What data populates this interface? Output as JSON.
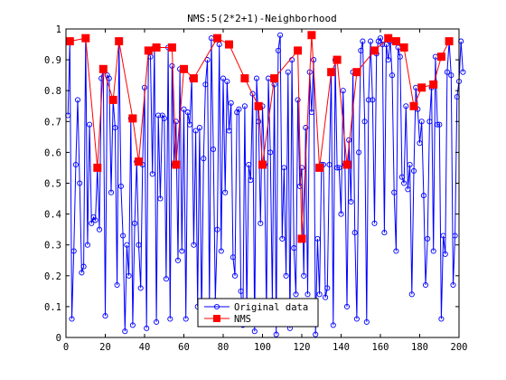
{
  "chart_data": {
    "type": "line",
    "title": "NMS:5(2*2+1)-Neighborhood",
    "xlabel": "",
    "ylabel": "",
    "xlim": [
      0,
      200
    ],
    "ylim": [
      0,
      1
    ],
    "xticks": [
      0,
      20,
      40,
      60,
      80,
      100,
      120,
      140,
      160,
      180,
      200
    ],
    "yticks": [
      0,
      0.1,
      0.2,
      0.3,
      0.4,
      0.5,
      0.6,
      0.7,
      0.8,
      0.9,
      1
    ],
    "xtick_labels": [
      "0",
      "20",
      "40",
      "60",
      "80",
      "100",
      "120",
      "140",
      "160",
      "180",
      "200"
    ],
    "ytick_labels": [
      "0",
      "0.1",
      "0.2",
      "0.3",
      "0.4",
      "0.5",
      "0.6",
      "0.7",
      "0.8",
      "0.9",
      "1"
    ],
    "grid": false,
    "legend": "bottom-center",
    "series": [
      {
        "name": "Original data",
        "color": "#0000ff",
        "marker": "circle",
        "x_start": 1,
        "x_step": 1,
        "values": [
          0.72,
          0.96,
          0.06,
          0.28,
          0.56,
          0.77,
          0.5,
          0.21,
          0.23,
          0.97,
          0.3,
          0.69,
          0.37,
          0.39,
          0.38,
          0.55,
          0.35,
          0.84,
          0.87,
          0.07,
          0.85,
          0.84,
          0.47,
          0.77,
          0.68,
          0.17,
          0.96,
          0.49,
          0.33,
          0.02,
          0.3,
          0.2,
          0.71,
          0.04,
          0.37,
          0.57,
          0.3,
          0.16,
          0.56,
          0.81,
          0.03,
          0.93,
          0.91,
          0.53,
          0.94,
          0.05,
          0.72,
          0.45,
          0.72,
          0.71,
          0.19,
          0.94,
          0.06,
          0.88,
          0.56,
          0.7,
          0.25,
          0.87,
          0.28,
          0.74,
          0.06,
          0.73,
          0.69,
          0.84,
          0.3,
          0.67,
          0.1,
          0.68,
          0.07,
          0.58,
          0.82,
          0.9,
          0.1,
          0.97,
          0.61,
          0.12,
          0.35,
          0.95,
          0.28,
          0.84,
          0.47,
          0.83,
          0.67,
          0.76,
          0.26,
          0.2,
          0.73,
          0.74,
          0.15,
          0.04,
          0.75,
          0.09,
          0.56,
          0.51,
          0.79,
          0.02,
          0.84,
          0.7,
          0.37,
          0.75,
          0.56,
          0.08,
          0.84,
          0.6,
          0.12,
          0.82,
          0.01,
          0.93,
          0.98,
          0.32,
          0.55,
          0.2,
          0.86,
          0.03,
          0.9,
          0.29,
          0.14,
          0.77,
          0.49,
          0.55,
          0.2,
          0.68,
          0.14,
          0.86,
          0.73,
          0.9,
          0.01,
          0.32,
          0.14,
          0.56,
          0.56,
          0.13,
          0.16,
          0.56,
          0.86,
          0.04,
          0.9,
          0.55,
          0.55,
          0.4,
          0.8,
          0.56,
          0.1,
          0.64,
          0.44,
          0.86,
          0.34,
          0.06,
          0.6,
          0.93,
          0.96,
          0.7,
          0.05,
          0.77,
          0.96,
          0.77,
          0.37,
          0.92,
          0.96,
          0.97,
          0.95,
          0.34,
          0.95,
          0.9,
          0.96,
          0.85,
          0.47,
          0.28,
          0.94,
          0.91,
          0.52,
          0.5,
          0.75,
          0.48,
          0.56,
          0.14,
          0.54,
          0.81,
          0.74,
          0.63,
          0.7,
          0.46,
          0.17,
          0.32,
          0.7,
          0.81,
          0.28,
          0.91,
          0.69,
          0.69,
          0.06,
          0.33,
          0.27,
          0.86,
          0.96,
          0.85,
          0.17,
          0.33,
          0.78,
          0.83,
          0.96,
          0.86
        ]
      },
      {
        "name": "NMS",
        "color": "#ff0000",
        "marker": "square",
        "x": [
          2,
          10,
          16,
          19,
          24,
          27,
          34,
          37,
          42,
          46,
          54,
          56,
          60,
          65,
          77,
          83,
          91,
          98,
          100,
          106,
          118,
          120,
          125,
          129,
          135,
          138,
          143,
          148,
          157,
          164,
          168,
          172,
          177,
          181,
          187,
          191,
          195
        ],
        "y": [
          0.96,
          0.97,
          0.55,
          0.87,
          0.77,
          0.96,
          0.71,
          0.57,
          0.93,
          0.94,
          0.94,
          0.56,
          0.87,
          0.84,
          0.97,
          0.95,
          0.84,
          0.75,
          0.56,
          0.84,
          0.93,
          0.32,
          0.98,
          0.55,
          0.86,
          0.9,
          0.56,
          0.86,
          0.93,
          0.97,
          0.96,
          0.94,
          0.75,
          0.81,
          0.82,
          0.91,
          0.96
        ]
      }
    ]
  }
}
